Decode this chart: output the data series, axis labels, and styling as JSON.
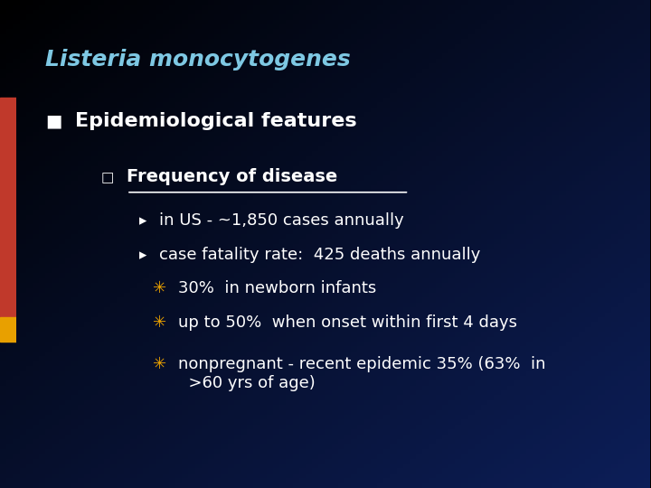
{
  "title": "Listeria monocytogenes",
  "title_color": "#7EC8E3",
  "title_italic": true,
  "title_bold": true,
  "background_top": "#000000",
  "background_bottom": "#1a3a5c",
  "left_bar_colors": [
    "#C0392B",
    "#E67E22"
  ],
  "bullet1": "Epidemiological features",
  "bullet1_color": "#FFFFFF",
  "bullet1_marker": "■",
  "bullet1_marker_color": "#FFFFFF",
  "sub_bullet1": "Frequency of disease",
  "sub_bullet1_color": "#FFFFFF",
  "sub_bullet1_marker": "□",
  "sub_bullet1_underline": true,
  "items": [
    "in US - ~1,850 cases annually",
    "case fatality rate:  425 deaths annually"
  ],
  "items_color": "#FFFFFF",
  "items_marker": "▸",
  "star_items": [
    "30%  in newborn infants",
    "up to 50%  when onset within first 4 days",
    "nonpregnant - recent epidemic 35% (63%  in\n  >60 yrs of age)"
  ],
  "star_color": "#FFFFFF",
  "star_marker": "✳",
  "star_marker_color": "#E8A000"
}
